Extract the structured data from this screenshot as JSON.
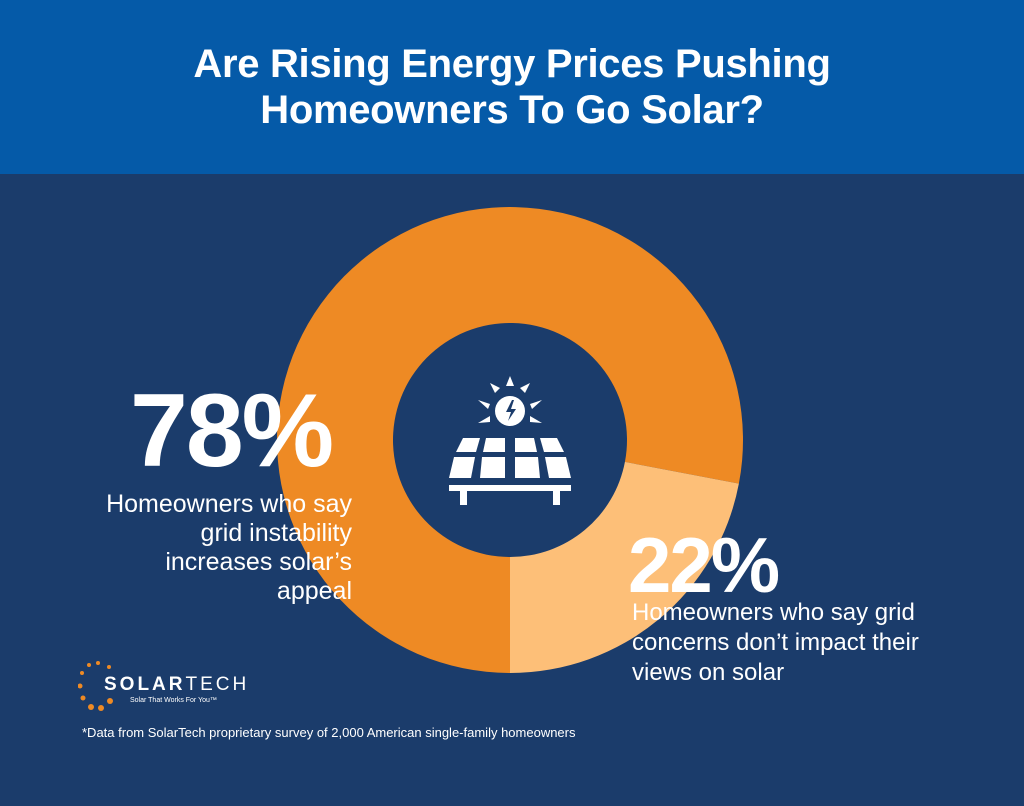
{
  "header": {
    "title_line1": "Are Rising Energy Prices Pushing",
    "title_line2": "Homeowners To Go Solar?"
  },
  "colors": {
    "header": "#055aa8",
    "background": "#1b3c6b",
    "orange": "#ee8a24",
    "light_orange": "#fdbf78"
  },
  "chart_data": {
    "type": "pie",
    "donut": true,
    "categories": [
      "Homeowners who say grid instability increases solar's appeal",
      "Homeowners who say grid concerns don't impact their views on solar"
    ],
    "values": [
      78,
      22
    ],
    "labels": [
      "78%",
      "22%"
    ],
    "colors": [
      "#ee8a24",
      "#fdbf78"
    ],
    "center_icon": "solar-panel-icon"
  },
  "annotations": {
    "a_value": "78%",
    "a_lines": [
      "Homeowners who say",
      "grid instability",
      "increases solar’s",
      "appeal"
    ],
    "b_value": "22%",
    "b_lines": [
      "Homeowners who say grid",
      "concerns don’t impact their",
      "views on solar"
    ]
  },
  "logo": {
    "name_bold": "SOLAR",
    "name_light": "TECH",
    "tagline": "Solar That Works For You™"
  },
  "footnote": "*Data from SolarTech proprietary survey of 2,000 American single-family homeowners"
}
